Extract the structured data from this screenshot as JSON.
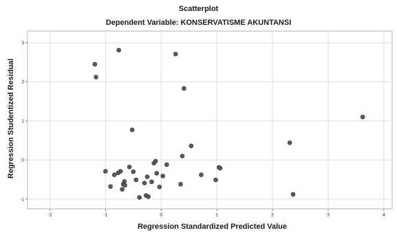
{
  "chart_data": {
    "type": "scatter",
    "title": "Scatterplot",
    "subtitle": "Dependent Variable: KONSERVATISME AKUNTANSI",
    "xlabel": "Regression Standardized Predicted Value",
    "ylabel": "Regression Studentized Residual",
    "xlim": [
      -2.4,
      4.15
    ],
    "ylim": [
      -1.25,
      3.3
    ],
    "x_ticks": [
      -2,
      -1,
      0,
      1,
      2,
      3,
      4
    ],
    "y_ticks": [
      -1,
      0,
      1,
      2,
      3
    ],
    "grid": true,
    "marker_color": "#5a5a5a",
    "points": [
      {
        "x": -1.19,
        "y": 2.45
      },
      {
        "x": -1.17,
        "y": 2.12
      },
      {
        "x": -0.76,
        "y": 2.81
      },
      {
        "x": 0.26,
        "y": 2.71
      },
      {
        "x": 0.41,
        "y": 1.83
      },
      {
        "x": -0.52,
        "y": 0.77
      },
      {
        "x": 3.62,
        "y": 1.1
      },
      {
        "x": 2.31,
        "y": 0.44
      },
      {
        "x": 0.54,
        "y": 0.36
      },
      {
        "x": 0.38,
        "y": 0.1
      },
      {
        "x": -0.1,
        "y": -0.03
      },
      {
        "x": -0.13,
        "y": -0.08
      },
      {
        "x": 0.1,
        "y": -0.12
      },
      {
        "x": 1.04,
        "y": -0.19
      },
      {
        "x": 1.06,
        "y": -0.21
      },
      {
        "x": -0.57,
        "y": -0.18
      },
      {
        "x": -1.0,
        "y": -0.29
      },
      {
        "x": -0.73,
        "y": -0.29
      },
      {
        "x": -0.77,
        "y": -0.33
      },
      {
        "x": -0.5,
        "y": -0.3
      },
      {
        "x": -0.08,
        "y": -0.34
      },
      {
        "x": -0.84,
        "y": -0.38
      },
      {
        "x": 0.72,
        "y": -0.38
      },
      {
        "x": 0.03,
        "y": -0.41
      },
      {
        "x": -0.25,
        "y": -0.43
      },
      {
        "x": -0.45,
        "y": -0.51
      },
      {
        "x": 0.98,
        "y": -0.51
      },
      {
        "x": -0.17,
        "y": -0.56
      },
      {
        "x": -0.66,
        "y": -0.55
      },
      {
        "x": -0.3,
        "y": -0.59
      },
      {
        "x": -0.68,
        "y": -0.62
      },
      {
        "x": 0.35,
        "y": -0.62
      },
      {
        "x": -0.65,
        "y": -0.65
      },
      {
        "x": -0.91,
        "y": -0.68
      },
      {
        "x": -0.03,
        "y": -0.69
      },
      {
        "x": -0.7,
        "y": -0.75
      },
      {
        "x": -0.27,
        "y": -0.91
      },
      {
        "x": -0.23,
        "y": -0.94
      },
      {
        "x": -0.39,
        "y": -0.96
      },
      {
        "x": 2.37,
        "y": -0.88
      }
    ]
  }
}
